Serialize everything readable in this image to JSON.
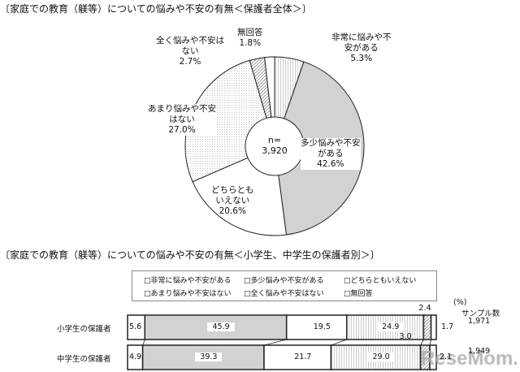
{
  "chart_data": [
    {
      "type": "pie",
      "title": "〔家庭での教育（躾等）についての悩みや不安の有無＜保護者全体＞〕",
      "center_label": "n=\n3,920",
      "slices": [
        {
          "name": "非常に悩みや不\n安がある",
          "value": 5.3,
          "color": "#ffffff"
        },
        {
          "name": "多少悩みや不安\nがある",
          "value": 42.6,
          "color": "#d2d2d2"
        },
        {
          "name": "どちらとも\nいえない",
          "value": 20.6,
          "color": "#ffffff"
        },
        {
          "name": "あまり悩みや不安\nはない",
          "value": 27.0,
          "color": "#f0f0f0"
        },
        {
          "name": "全く悩みや不安は\nない",
          "value": 2.7,
          "color": "#e0e0e0"
        },
        {
          "name": "無回答",
          "value": 1.8,
          "color": "#ffffff"
        }
      ]
    },
    {
      "type": "bar",
      "stacked": true,
      "orientation": "horizontal",
      "title": "〔家庭での教育（躾等）についての悩みや不安の有無＜小学生、中学生の保護者別＞〕",
      "unit": "(%)",
      "sample_header": "サンプル数",
      "legend": [
        "非常に悩みや不安がある",
        "多少悩みや不安がある",
        "どちらともいえない",
        "あまり悩みや不安はない",
        "全く悩みや不安はない",
        "無回答"
      ],
      "categories": [
        "小学生の保護者",
        "中学生の保護者"
      ],
      "samples": [
        "1,971",
        "1,949"
      ],
      "series": [
        {
          "name": "非常に悩みや不安がある",
          "values": [
            5.6,
            4.9
          ]
        },
        {
          "name": "多少悩みや不安がある",
          "values": [
            45.9,
            39.3
          ]
        },
        {
          "name": "どちらともいえない",
          "values": [
            19.5,
            21.7
          ]
        },
        {
          "name": "あまり悩みや不安はない",
          "values": [
            24.9,
            29.0
          ]
        },
        {
          "name": "全く悩みや不安はない",
          "values": [
            2.4,
            3.0
          ]
        },
        {
          "name": "無回答",
          "values": [
            1.7,
            2.1
          ]
        }
      ]
    }
  ],
  "watermark": "ReseMom"
}
